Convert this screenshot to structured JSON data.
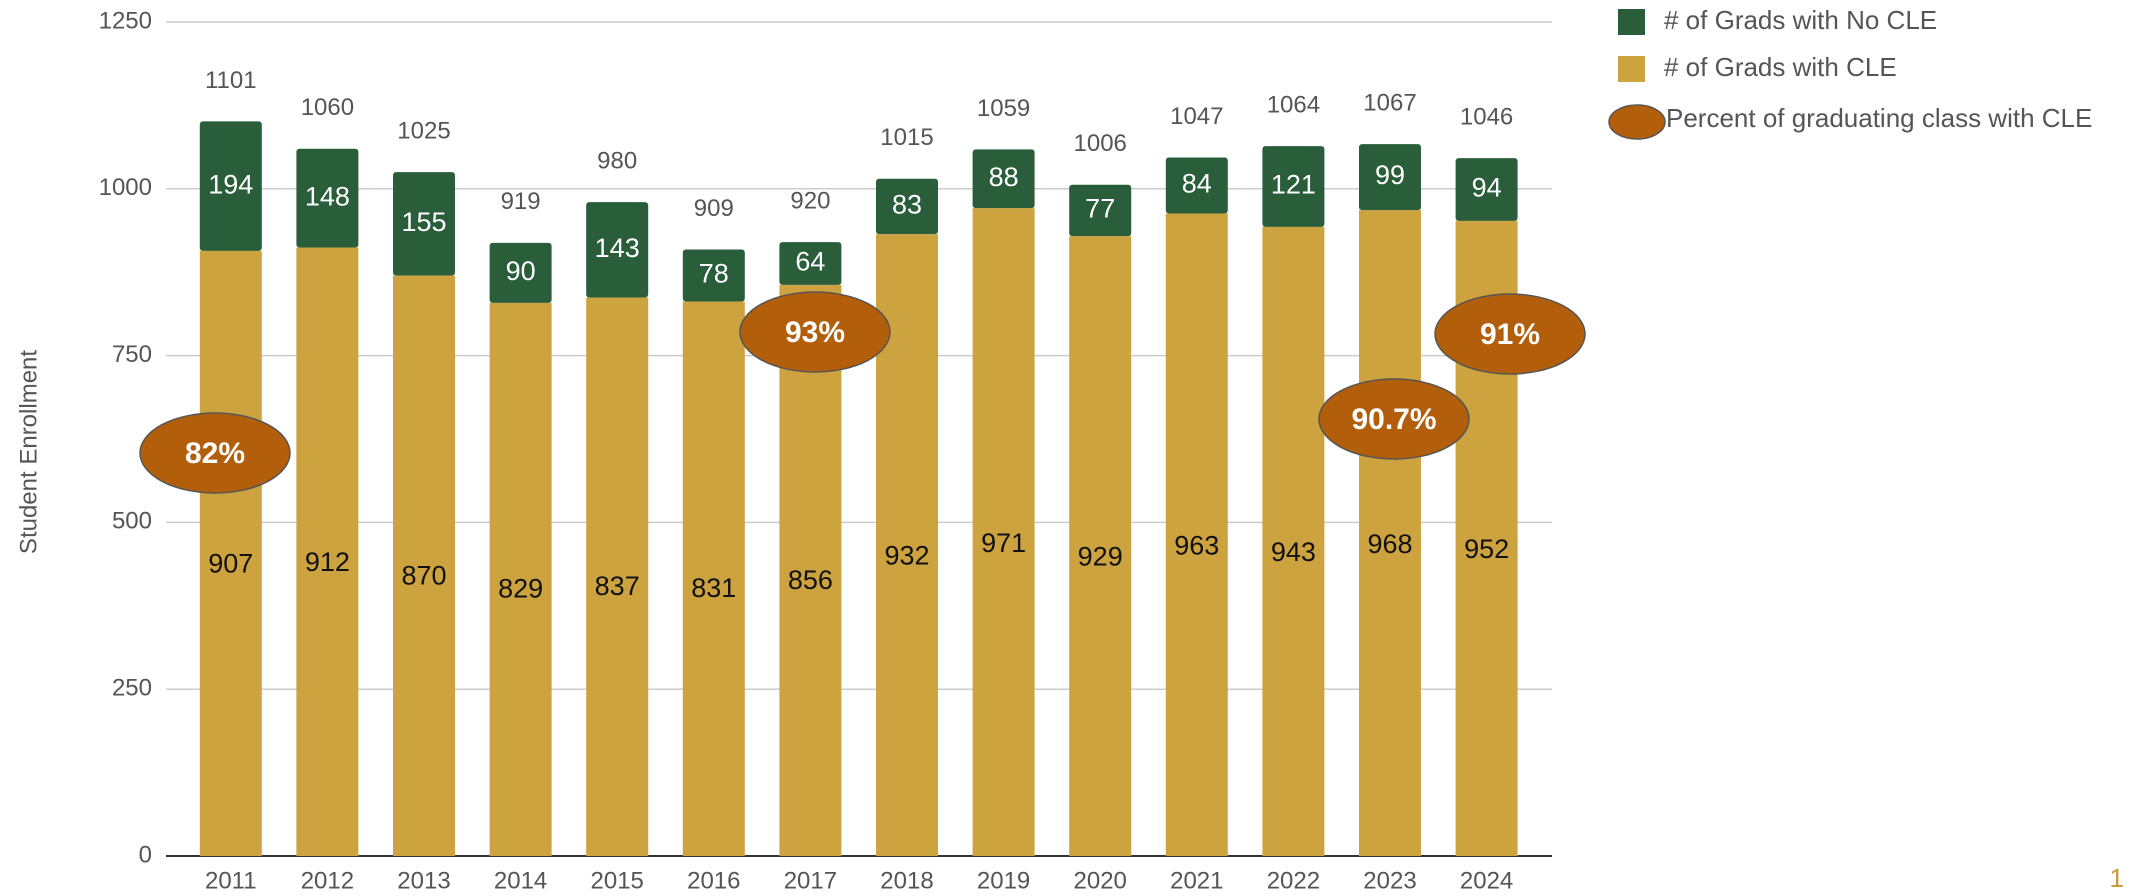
{
  "chart_data": {
    "type": "stacked_bar",
    "y_label": "Student Enrollment",
    "categories": [
      "2011",
      "2012",
      "2013",
      "2014",
      "2015",
      "2016",
      "2017",
      "2018",
      "2019",
      "2020",
      "2021",
      "2022",
      "2023",
      "2024"
    ],
    "series": [
      {
        "name": "# of Grads with CLE",
        "color": "#cda33f",
        "values": [
          907,
          912,
          870,
          829,
          837,
          831,
          856,
          932,
          971,
          929,
          963,
          943,
          968,
          952
        ]
      },
      {
        "name": "# of Grads with No CLE",
        "color": "#2a5e3a",
        "values": [
          194,
          148,
          155,
          90,
          143,
          78,
          64,
          83,
          88,
          77,
          84,
          121,
          99,
          94
        ]
      }
    ],
    "totals": [
      1101,
      1060,
      1025,
      919,
      980,
      909,
      920,
      1015,
      1059,
      1006,
      1047,
      1064,
      1067,
      1046
    ],
    "percent_series": {
      "name": "Percent of graduating class with CLE",
      "color": "#b35e0b",
      "values": [
        82,
        null,
        null,
        null,
        null,
        null,
        93,
        null,
        null,
        null,
        null,
        null,
        90.7,
        91
      ],
      "value_labels": [
        "82%",
        null,
        null,
        null,
        null,
        null,
        "93%",
        null,
        null,
        null,
        null,
        null,
        "90.7%",
        "91%"
      ]
    },
    "ylim": [
      0,
      1250
    ],
    "yticks": [
      0,
      250,
      500,
      750,
      1000,
      1250
    ],
    "grid": true,
    "page_number": "1"
  }
}
